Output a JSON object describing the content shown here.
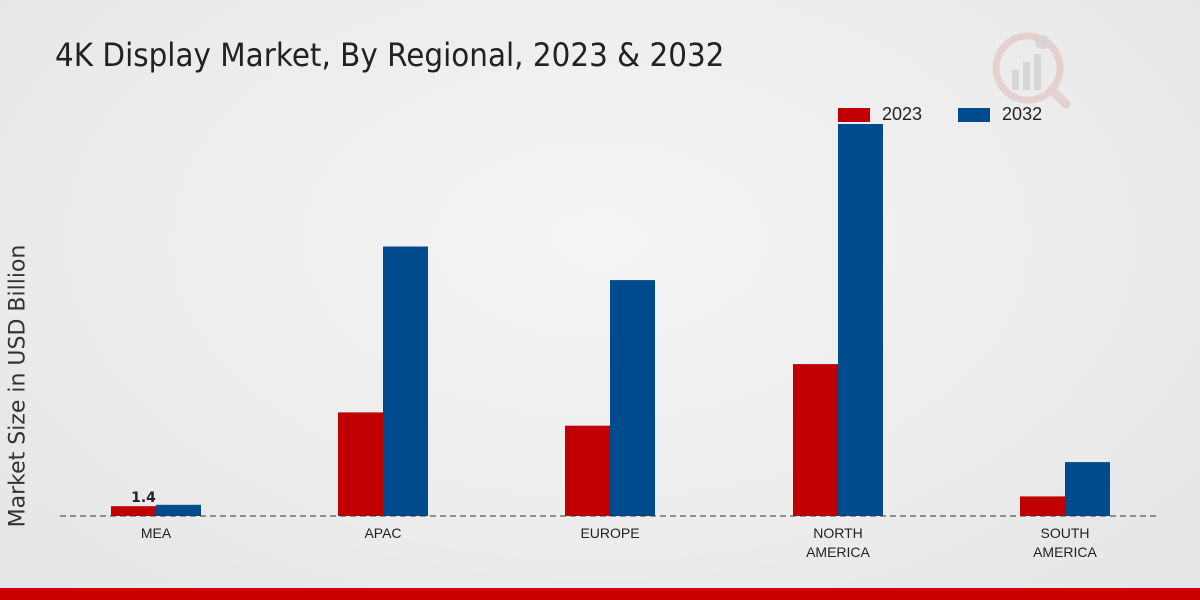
{
  "chart_data": {
    "type": "bar",
    "title": "4K Display Market, By Regional, 2023 & 2032",
    "xlabel": "",
    "ylabel": "Market Size in USD Billion",
    "categories": [
      "MEA",
      "APAC",
      "EUROPE",
      "NORTH AMERICA",
      "SOUTH AMERICA"
    ],
    "category_lines": [
      [
        "MEA"
      ],
      [
        "APAC"
      ],
      [
        "EUROPE"
      ],
      [
        "NORTH",
        "AMERICA"
      ],
      [
        "SOUTH",
        "AMERICA"
      ]
    ],
    "series": [
      {
        "name": "2023",
        "color": "#c00000",
        "values": [
          1.4,
          14.8,
          12.9,
          21.7,
          2.8
        ]
      },
      {
        "name": "2032",
        "color": "#004b8d",
        "values": [
          1.6,
          38.5,
          33.7,
          56.0,
          7.7
        ]
      }
    ],
    "data_labels": [
      {
        "series": 0,
        "index": 0,
        "text": "1.4"
      }
    ],
    "ylim": [
      0,
      60
    ],
    "grid": false,
    "legend_position": "top-right"
  }
}
